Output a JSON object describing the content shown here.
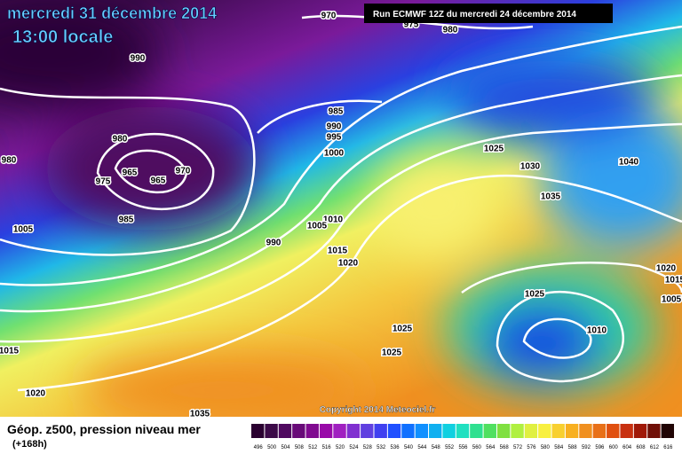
{
  "header": {
    "title": "mercredi 31 décembre 2014",
    "subtitle": "13:00 locale",
    "run": "Run ECMWF 12Z du mercredi 24 décembre 2014"
  },
  "isobars": [
    "970",
    "975",
    "980",
    "990",
    "980",
    "980",
    "975",
    "965",
    "965",
    "970",
    "985",
    "1005",
    "985",
    "990",
    "995",
    "1000",
    "1010",
    "1005",
    "990",
    "1015",
    "1020",
    "1025",
    "1030",
    "1035",
    "1040",
    "1025",
    "1020",
    "1015",
    "1005",
    "1010",
    "1025",
    "1025",
    "1015",
    "1020",
    "1035"
  ],
  "copyright": "Copyright 2014 Meteociel.fr",
  "footer": {
    "label": "Géop. z500, pression niveau mer",
    "lead": "(+168h)"
  },
  "legend": {
    "labels": [
      "496",
      "500",
      "504",
      "508",
      "512",
      "516",
      "520",
      "524",
      "528",
      "532",
      "536",
      "540",
      "544",
      "548",
      "552",
      "556",
      "560",
      "564",
      "568",
      "572",
      "576",
      "580",
      "584",
      "588",
      "592",
      "596",
      "600",
      "604",
      "608",
      "612",
      "616"
    ]
  }
}
